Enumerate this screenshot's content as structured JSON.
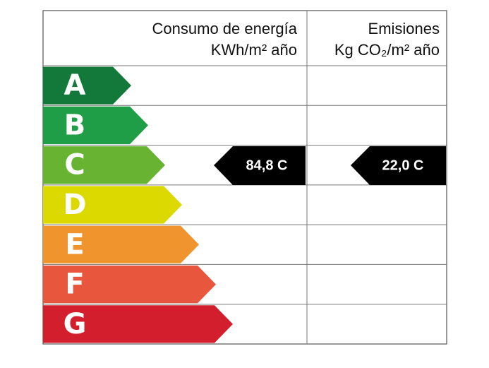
{
  "header": {
    "energy_title": "Consumo de energía",
    "energy_unit": "KWh/m² año",
    "emissions_title": "Emisiones",
    "emissions_unit": "Kg CO₂/m² año"
  },
  "ratings": [
    "A",
    "B",
    "C",
    "D",
    "E",
    "F",
    "G"
  ],
  "energy_value": "84,8 C",
  "emissions_value": "22,0 C"
}
